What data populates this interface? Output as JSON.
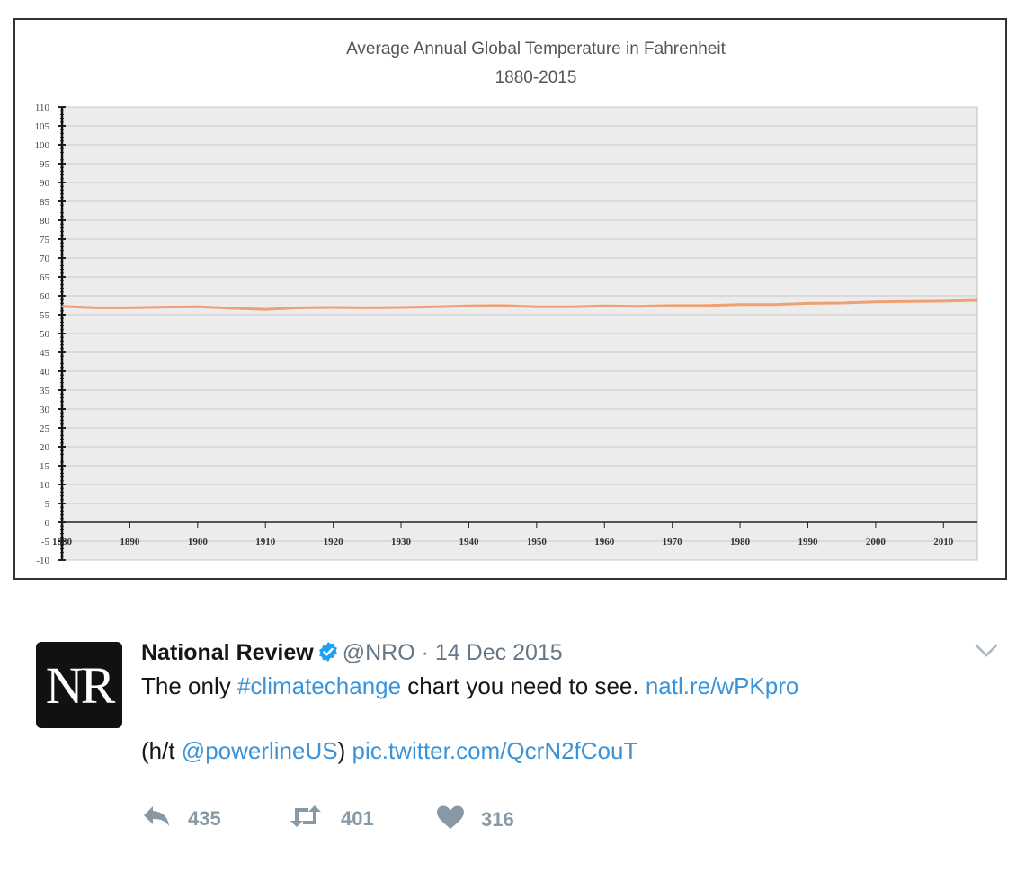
{
  "chart_data": {
    "type": "line",
    "title": "Average Annual Global Temperature in Fahrenheit",
    "subtitle": "1880-2015",
    "ylim": [
      -10,
      110
    ],
    "xlim": [
      1880,
      2015
    ],
    "y_ticks": [
      "110",
      "105",
      "100",
      "95",
      "90",
      "85",
      "80",
      "75",
      "70",
      "65",
      "60",
      "55",
      "50",
      "45",
      "40",
      "35",
      "30",
      "25",
      "20",
      "15",
      "10",
      "5",
      "0",
      "-5",
      "-10"
    ],
    "x_ticks": [
      "1880",
      "1890",
      "1900",
      "1910",
      "1920",
      "1930",
      "1940",
      "1950",
      "1960",
      "1970",
      "1980",
      "1990",
      "2000",
      "2010"
    ],
    "grid": true,
    "line_color": "#f0a070",
    "x": [
      1880,
      1885,
      1890,
      1895,
      1900,
      1905,
      1910,
      1915,
      1920,
      1925,
      1930,
      1935,
      1940,
      1945,
      1950,
      1955,
      1960,
      1965,
      1970,
      1975,
      1980,
      1985,
      1990,
      1995,
      2000,
      2005,
      2010,
      2015
    ],
    "values": [
      57.2,
      56.8,
      56.8,
      57.0,
      57.1,
      56.7,
      56.4,
      56.8,
      56.9,
      56.8,
      56.9,
      57.1,
      57.3,
      57.4,
      57.1,
      57.1,
      57.3,
      57.2,
      57.4,
      57.4,
      57.7,
      57.7,
      58.0,
      58.1,
      58.4,
      58.5,
      58.6,
      58.8
    ]
  },
  "tweet": {
    "avatar_text": "NR",
    "name": "National Review",
    "handle": "@NRO",
    "separator": "·",
    "date": "14 Dec 2015",
    "line1_prefix": "The only ",
    "hashtag": "#climatechange",
    "line1_middle": " chart you need to see. ",
    "link1": "natl.re/wPKpro",
    "line2_prefix": "(h/t ",
    "mention": "@powerlineUS",
    "line2_middle": ") ",
    "link2": "pic.twitter.com/QcrN2fCouT",
    "reply_count": "435",
    "retweet_count": "401",
    "like_count": "316"
  }
}
